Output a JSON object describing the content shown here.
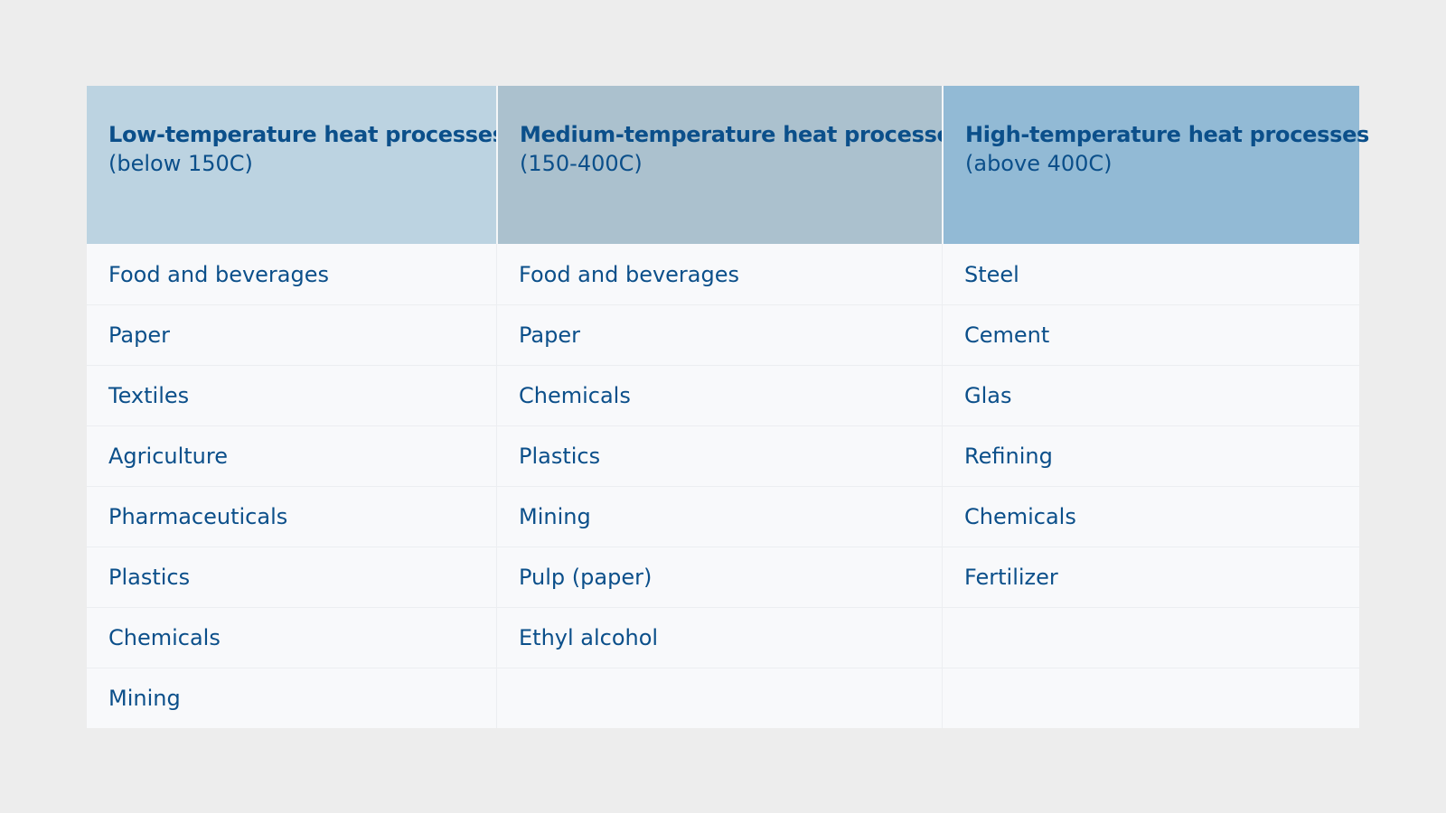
{
  "table": {
    "headers": [
      {
        "title": "Low-temperature heat processes",
        "subtitle": "(below 150C)"
      },
      {
        "title": "Medium-temperature heat processes",
        "subtitle": "(150-400C)"
      },
      {
        "title": "High-temperature heat processes",
        "subtitle": "(above 400C)"
      }
    ],
    "rows": [
      [
        "Food and beverages",
        "Food and beverages",
        "Steel"
      ],
      [
        "Paper",
        "Paper",
        "Cement"
      ],
      [
        "Textiles",
        "Chemicals",
        "Glas"
      ],
      [
        "Agriculture",
        "Plastics",
        "Refining"
      ],
      [
        "Pharmaceuticals",
        "Mining",
        "Chemicals"
      ],
      [
        "Plastics",
        "Pulp (paper)",
        "Fertilizer"
      ],
      [
        "Chemicals",
        "Ethyl alcohol",
        ""
      ],
      [
        "Mining",
        "",
        ""
      ]
    ],
    "colors": {
      "header_low": "#bcd3e1",
      "header_medium": "#abc1ce",
      "header_high": "#92bad5",
      "text": "#0b4f8a",
      "background": "#ededed",
      "table_body": "#f8f9fb"
    }
  }
}
